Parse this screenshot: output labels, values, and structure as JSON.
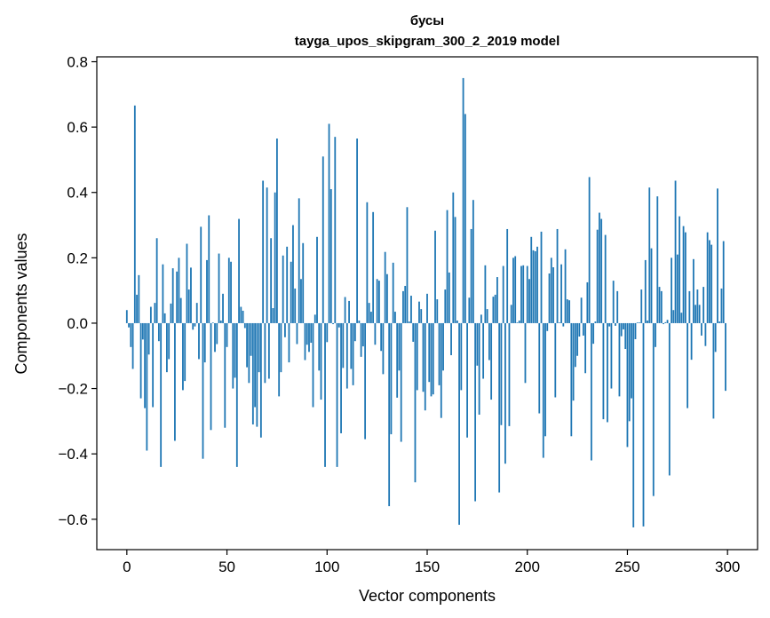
{
  "chart_data": {
    "type": "bar",
    "title": [
      "бусы",
      "tayga_upos_skipgram_300_2_2019 model"
    ],
    "xlabel": "Vector components",
    "ylabel": "Components values",
    "xlim": [
      -15,
      315
    ],
    "ylim": [
      -0.693,
      0.815
    ],
    "xticks": [
      0,
      50,
      100,
      150,
      200,
      250,
      300
    ],
    "xtick_labels": [
      "0",
      "50",
      "100",
      "150",
      "200",
      "250",
      "300"
    ],
    "yticks": [
      -0.6,
      -0.4,
      -0.2,
      0.0,
      0.2,
      0.4,
      0.6,
      0.8
    ],
    "ytick_labels": [
      "−0.6",
      "−0.4",
      "−0.2",
      "0.0",
      "0.2",
      "0.4",
      "0.6",
      "0.8"
    ],
    "grid": false,
    "bar_color": "#1f77b4",
    "values": [
      0.04,
      -0.013,
      -0.073,
      -0.14,
      0.666,
      0.087,
      0.147,
      -0.23,
      -0.05,
      -0.26,
      -0.39,
      -0.096,
      0.05,
      -0.257,
      0.062,
      0.26,
      -0.055,
      -0.44,
      0.18,
      0.03,
      -0.15,
      -0.11,
      0.06,
      0.168,
      -0.36,
      0.158,
      0.2,
      0.077,
      -0.205,
      -0.177,
      0.243,
      0.103,
      0.17,
      -0.02,
      -0.01,
      0.062,
      -0.11,
      0.295,
      -0.415,
      -0.12,
      0.193,
      0.33,
      -0.327,
      0.002,
      -0.088,
      -0.064,
      0.213,
      0.008,
      0.09,
      -0.32,
      -0.073,
      0.2,
      0.188,
      -0.2,
      -0.167,
      -0.44,
      0.319,
      0.05,
      0.038,
      -0.015,
      -0.135,
      -0.183,
      -0.1,
      -0.31,
      -0.257,
      -0.317,
      -0.15,
      -0.35,
      0.436,
      -0.183,
      0.415,
      -0.17,
      0.26,
      0.046,
      0.4,
      0.565,
      -0.224,
      -0.15,
      0.207,
      -0.043,
      0.234,
      -0.12,
      0.188,
      0.3,
      0.106,
      -0.064,
      0.382,
      0.135,
      0.245,
      -0.113,
      -0.066,
      -0.088,
      -0.06,
      -0.257,
      0.026,
      0.264,
      -0.145,
      -0.234,
      0.51,
      -0.44,
      -0.058,
      0.61,
      0.41,
      -0.003,
      0.57,
      -0.44,
      -0.013,
      -0.337,
      -0.137,
      0.08,
      -0.2,
      0.068,
      -0.14,
      -0.19,
      -0.055,
      0.565,
      0.008,
      -0.103,
      -0.071,
      -0.355,
      0.37,
      0.062,
      0.035,
      0.34,
      -0.066,
      0.135,
      0.13,
      -0.085,
      -0.156,
      0.218,
      0.15,
      -0.56,
      -0.34,
      0.185,
      0.035,
      -0.228,
      -0.145,
      -0.363,
      0.098,
      0.114,
      0.355,
      0.005,
      0.084,
      -0.057,
      -0.487,
      -0.205,
      0.066,
      0.043,
      -0.21,
      -0.267,
      0.09,
      -0.18,
      -0.224,
      -0.218,
      0.283,
      0.073,
      -0.19,
      -0.29,
      -0.145,
      0.103,
      0.346,
      0.155,
      -0.098,
      0.4,
      0.325,
      0.008,
      -0.617,
      -0.205,
      0.75,
      0.64,
      -0.35,
      0.078,
      0.288,
      0.377,
      -0.545,
      -0.13,
      -0.28,
      0.026,
      -0.17,
      0.177,
      0.043,
      -0.113,
      -0.234,
      0.081,
      0.087,
      0.141,
      -0.518,
      -0.312,
      0.175,
      -0.43,
      0.288,
      -0.315,
      0.056,
      0.2,
      0.205,
      0.002,
      0.008,
      0.175,
      0.177,
      -0.183,
      0.175,
      0.135,
      0.264,
      0.223,
      0.22,
      0.234,
      -0.276,
      0.28,
      -0.412,
      -0.346,
      -0.024,
      0.152,
      0.2,
      0.171,
      -0.227,
      0.288,
      0.002,
      0.18,
      -0.01,
      0.226,
      0.073,
      0.07,
      -0.346,
      -0.237,
      -0.134,
      -0.1,
      -0.041,
      0.078,
      -0.038,
      -0.153,
      0.125,
      0.447,
      -0.42,
      -0.063,
      0.005,
      0.286,
      0.338,
      0.319,
      -0.294,
      0.27,
      -0.303,
      -0.01,
      -0.2,
      0.13,
      -0.008,
      0.098,
      -0.224,
      -0.04,
      -0.019,
      -0.079,
      -0.379,
      -0.3,
      -0.23,
      -0.625,
      -0.049,
      0.002,
      0.002,
      0.103,
      -0.622,
      0.193,
      0.008,
      0.415,
      0.229,
      -0.529,
      -0.073,
      0.388,
      0.111,
      0.098,
      -0.003,
      0.003,
      0.01,
      -0.466,
      0.2,
      0.04,
      0.436,
      0.21,
      0.327,
      0.032,
      0.297,
      0.278,
      -0.26,
      0.098,
      -0.112,
      0.196,
      0.056,
      0.103,
      0.056,
      -0.038,
      0.111,
      -0.07,
      0.278,
      0.254,
      0.24,
      -0.292,
      -0.088,
      0.412,
      0.005,
      0.106,
      0.251,
      -0.207
    ]
  }
}
